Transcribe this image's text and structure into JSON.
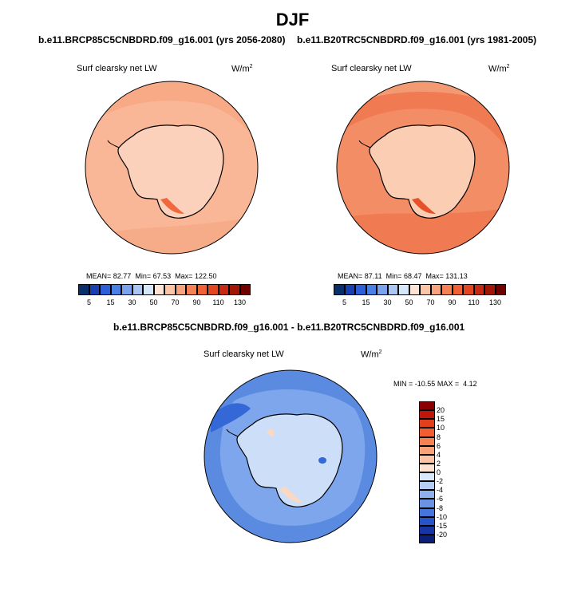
{
  "page": {
    "season": "DJF"
  },
  "panel_test": {
    "case_title": "b.e11.BRCP85C5CNBDRD.f09_g16.001 (yrs 2056-2080)",
    "variable": "Surf clearsky net LW",
    "units": "W/m",
    "units_exp": "2",
    "mean_label": "MEAN=",
    "mean": "82.77",
    "min_label": "Min=",
    "min": "67.53",
    "max_label": "Max=",
    "max": "122.50"
  },
  "panel_ctrl": {
    "case_title": "b.e11.B20TRC5CNBDRD.f09_g16.001 (yrs 1981-2005)",
    "variable": "Surf clearsky net LW",
    "units": "W/m",
    "units_exp": "2",
    "mean_label": "MEAN=",
    "mean": "87.11",
    "min_label": "Min=",
    "min": "68.47",
    "max_label": "Max=",
    "max": "131.13"
  },
  "panel_diff": {
    "case_title": "b.e11.BRCP85C5CNBDRD.f09_g16.001 - b.e11.B20TRC5CNBDRD.f09_g16.001",
    "variable": "Surf clearsky net LW",
    "units": "W/m",
    "units_exp": "2",
    "min_label": "MIN =",
    "min": "-10.55",
    "max_label": "MAX =",
    "max": "4.12"
  },
  "colorbar_main": {
    "ticks": [
      "5",
      "15",
      "30",
      "50",
      "70",
      "90",
      "110",
      "130"
    ],
    "colors": [
      "#08306b",
      "#1a3fb0",
      "#2d5fd8",
      "#4a7fe6",
      "#7aa3ef",
      "#a9c6f5",
      "#d6e6fb",
      "#fde4d4",
      "#fbc6a8",
      "#f9a37e",
      "#f58155",
      "#f06236",
      "#e0461f",
      "#c62a10",
      "#a21606",
      "#700000"
    ]
  },
  "colorbar_diff": {
    "ticks": [
      "20",
      "15",
      "10",
      "8",
      "6",
      "4",
      "2",
      "0",
      "-2",
      "-4",
      "-6",
      "-8",
      "-10",
      "-15",
      "-20"
    ],
    "colors": [
      "#8b0000",
      "#c0150a",
      "#e0401c",
      "#f25e32",
      "#f6824f",
      "#f8a27a",
      "#fbc4a6",
      "#fde3d2",
      "#d8e7fb",
      "#b4cdf5",
      "#8eb1ee",
      "#6a93e6",
      "#4474dc",
      "#2754c9",
      "#1736a6",
      "#0a1f7a"
    ]
  },
  "map_colors": {
    "test_ocean": "#f9b797",
    "test_ocean_band": "#f7a683",
    "test_land": "#fbd1bb",
    "test_coast_warm": "#f0683e",
    "ctrl_ocean": "#f38d66",
    "ctrl_band": "#f07a52",
    "ctrl_land": "#fbcdb3",
    "ctrl_coast_warm": "#e5512b",
    "diff_ocean": "#5b8be0",
    "diff_band": "#7ea6ec",
    "diff_land": "#cddff8",
    "diff_dark": "#3468d6",
    "diff_warm": "#fbd8c2"
  }
}
